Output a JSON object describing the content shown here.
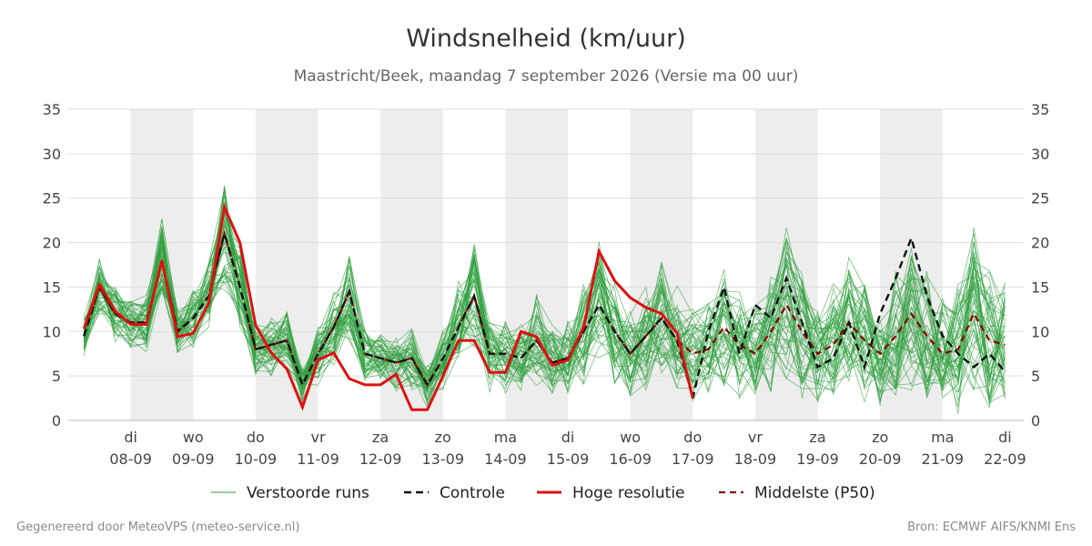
{
  "chart_data": {
    "type": "line",
    "title": "Windsnelheid (km/uur)",
    "subtitle": "Maastricht/Beek, maandag  7 september 2026 (Versie ma 00 uur)",
    "ylim": [
      0,
      35
    ],
    "yticks": [
      0,
      5,
      10,
      15,
      20,
      25,
      30,
      35
    ],
    "xlim": [
      -1,
      14.3
    ],
    "day_ticks": [
      {
        "x": 0,
        "day": "di",
        "date": "08-09"
      },
      {
        "x": 1,
        "day": "wo",
        "date": "09-09"
      },
      {
        "x": 2,
        "day": "do",
        "date": "10-09"
      },
      {
        "x": 3,
        "day": "vr",
        "date": "11-09"
      },
      {
        "x": 4,
        "day": "za",
        "date": "12-09"
      },
      {
        "x": 5,
        "day": "zo",
        "date": "13-09"
      },
      {
        "x": 6,
        "day": "ma",
        "date": "14-09"
      },
      {
        "x": 7,
        "day": "di",
        "date": "15-09"
      },
      {
        "x": 8,
        "day": "wo",
        "date": "16-09"
      },
      {
        "x": 9,
        "day": "do",
        "date": "17-09"
      },
      {
        "x": 10,
        "day": "vr",
        "date": "18-09"
      },
      {
        "x": 11,
        "day": "za",
        "date": "19-09"
      },
      {
        "x": 12,
        "day": "zo",
        "date": "20-09"
      },
      {
        "x": 13,
        "day": "ma",
        "date": "21-09"
      },
      {
        "x": 14,
        "day": "di",
        "date": "22-09"
      }
    ],
    "shaded_days": [
      [
        0,
        1
      ],
      [
        2,
        3
      ],
      [
        4,
        5
      ],
      [
        6,
        7
      ],
      [
        8,
        9
      ],
      [
        10,
        11
      ],
      [
        12,
        13
      ]
    ],
    "grid": true,
    "legend": {
      "position": "bottom",
      "items": [
        {
          "key": "ensemble",
          "label": "Verstoorde runs"
        },
        {
          "key": "control",
          "label": "Controle"
        },
        {
          "key": "hires",
          "label": "Hoge resolutie"
        },
        {
          "key": "median",
          "label": "Middelste (P50)"
        }
      ]
    },
    "colors": {
      "ensemble": "#2e9e3e",
      "control": "#111111",
      "hires": "#dd1111",
      "median": "#8b0000",
      "shade": "#ededed",
      "grid": "#dddddd"
    },
    "hires": {
      "name": "Hoge resolutie",
      "x": [
        -0.75,
        -0.5,
        -0.25,
        0,
        0.25,
        0.5,
        0.75,
        1,
        1.25,
        1.5,
        1.75,
        2,
        2.25,
        2.5,
        2.75,
        3,
        3.25,
        3.5,
        3.75,
        4,
        4.25,
        4.5,
        4.75,
        5,
        5.25,
        5.5,
        5.75,
        6,
        6.25,
        6.5,
        6.75,
        7,
        7.25,
        7.5,
        7.75,
        8,
        8.25,
        8.5,
        8.75,
        9
      ],
      "values": [
        10.3,
        15.3,
        12.3,
        10.8,
        10.8,
        18.0,
        9.4,
        9.8,
        13.2,
        24.0,
        20.0,
        10.7,
        7.6,
        5.8,
        1.5,
        6.8,
        7.6,
        4.7,
        4.0,
        4.0,
        5.2,
        1.2,
        1.2,
        5.0,
        9.0,
        9.0,
        5.4,
        5.4,
        10.0,
        9.4,
        6.2,
        6.8,
        10.4,
        19.0,
        15.7,
        13.8,
        12.7,
        12.0,
        9.8,
        2.5
      ]
    },
    "control": {
      "name": "Controle",
      "x": [
        -0.75,
        -0.5,
        -0.25,
        0,
        0.25,
        0.5,
        0.75,
        1,
        1.25,
        1.5,
        1.75,
        2,
        2.25,
        2.5,
        2.75,
        3,
        3.25,
        3.5,
        3.75,
        4,
        4.25,
        4.5,
        4.75,
        5,
        5.25,
        5.5,
        5.75,
        6,
        6.25,
        6.5,
        6.75,
        7,
        7.25,
        7.5,
        7.75,
        8,
        8.25,
        8.5,
        8.75,
        9,
        9.25,
        9.5,
        9.75,
        10,
        10.25,
        10.5,
        10.75,
        11,
        11.25,
        11.5,
        11.75,
        12,
        12.25,
        12.5,
        12.75,
        13,
        13.25,
        13.5,
        13.75,
        14
      ],
      "values": [
        9.5,
        15.0,
        12.0,
        11.0,
        11.0,
        18.0,
        10.0,
        11.5,
        14.0,
        21.0,
        15.0,
        8.0,
        8.5,
        9.0,
        4.0,
        7.5,
        10.5,
        14.5,
        7.5,
        7.0,
        6.5,
        7.0,
        4.0,
        7.0,
        10.5,
        14.0,
        7.5,
        7.5,
        7.0,
        9.0,
        6.5,
        7.0,
        10.0,
        13.0,
        10.0,
        7.5,
        9.5,
        11.5,
        9.0,
        2.5,
        10.0,
        15.0,
        7.5,
        13.0,
        11.5,
        16.0,
        11.0,
        6.0,
        7.0,
        11.0,
        6.0,
        12.0,
        16.0,
        20.5,
        14.0,
        9.5,
        7.5,
        6.0,
        7.5,
        5.5
      ]
    },
    "median": {
      "name": "Middelste (P50)",
      "x": [
        -0.75,
        -0.5,
        -0.25,
        0,
        0.25,
        0.5,
        0.75,
        1,
        1.25,
        1.5,
        1.75,
        2,
        2.25,
        2.5,
        2.75,
        3,
        3.25,
        3.5,
        3.75,
        4,
        4.25,
        4.5,
        4.75,
        5,
        5.25,
        5.5,
        5.75,
        6,
        6.25,
        6.5,
        6.75,
        7,
        7.25,
        7.5,
        7.75,
        8,
        8.25,
        8.5,
        8.75,
        9,
        9.25,
        9.5,
        9.75,
        10,
        10.25,
        10.5,
        10.75,
        11,
        11.25,
        11.5,
        11.75,
        12,
        12.25,
        12.5,
        12.75,
        13,
        13.25,
        13.5,
        13.75,
        14
      ],
      "values": [
        9.5,
        15.0,
        12.0,
        11.0,
        11.0,
        18.0,
        10.0,
        11.5,
        14.0,
        21.0,
        15.0,
        8.0,
        8.5,
        9.0,
        4.0,
        7.5,
        10.5,
        14.5,
        7.5,
        7.0,
        6.5,
        7.0,
        4.0,
        7.0,
        10.5,
        14.0,
        7.5,
        7.5,
        7.0,
        9.0,
        6.5,
        7.0,
        10.0,
        13.0,
        10.0,
        7.5,
        9.5,
        11.5,
        9.0,
        7.5,
        8.0,
        10.5,
        8.5,
        7.5,
        10.0,
        13.0,
        10.0,
        7.5,
        8.5,
        11.0,
        9.0,
        7.5,
        9.5,
        12.0,
        9.5,
        7.5,
        8.0,
        12.0,
        9.0,
        8.5
      ]
    },
    "ensemble": {
      "name": "Verstoorde runs",
      "member_count": 50
    }
  },
  "footer": {
    "left": "Gegenereerd door MeteoVPS (meteo-service.nl)",
    "right": "Bron: ECMWF AIFS/KNMI Ens"
  }
}
